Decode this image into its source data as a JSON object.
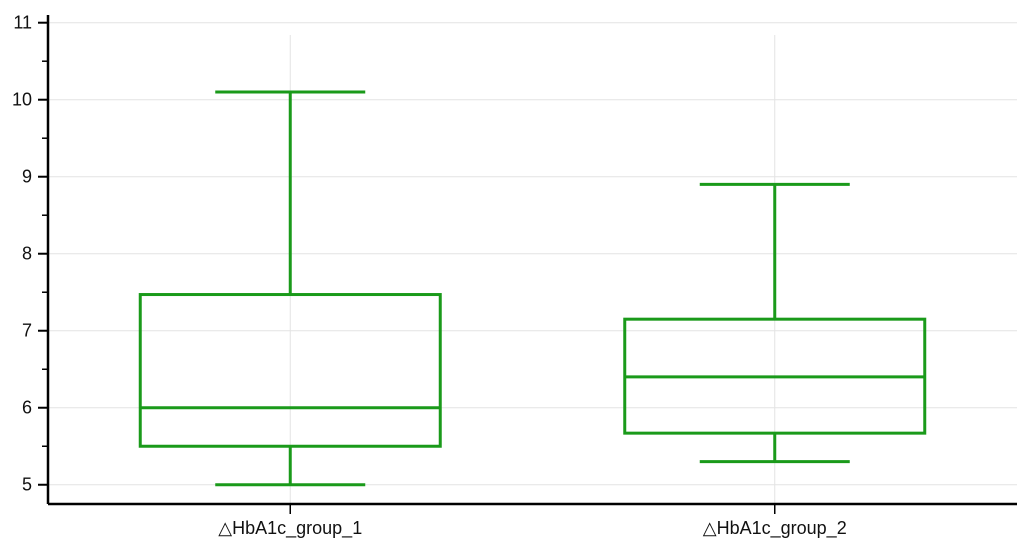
{
  "chart_data": {
    "type": "box",
    "categories": [
      "△HbA1c_group_1",
      "△HbA1c_group_2"
    ],
    "boxes": [
      {
        "min": 5.0,
        "q1": 5.5,
        "median": 6.0,
        "q3": 7.47,
        "max": 10.1
      },
      {
        "min": 5.3,
        "q1": 5.67,
        "median": 6.4,
        "q3": 7.15,
        "max": 8.9
      }
    ],
    "ylim": [
      4.75,
      11.1
    ],
    "yticks": [
      5,
      6,
      7,
      8,
      9,
      10,
      11
    ],
    "ytick_labels": [
      "5",
      "6",
      "7",
      "8",
      "9",
      "10",
      "11"
    ],
    "grid": true,
    "color": "#1a9a1a",
    "grid_color": "#e3e3e3",
    "axis_color": "#000000"
  }
}
